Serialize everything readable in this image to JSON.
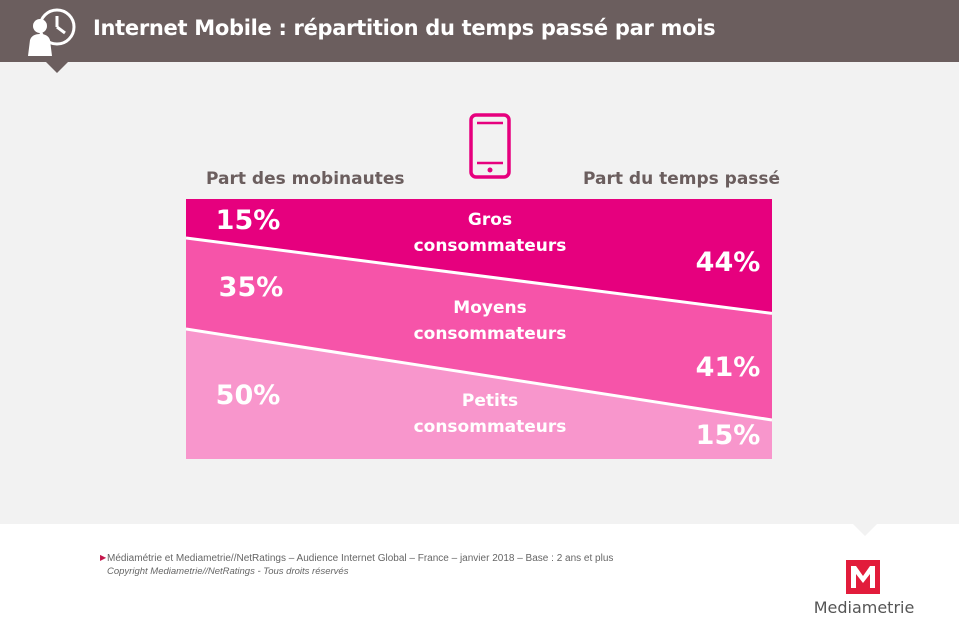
{
  "header": {
    "title": "Internet Mobile : répartition du temps passé par mois",
    "icon": "person-clock-icon"
  },
  "phone_icon": "smartphone-icon",
  "columns": {
    "left": "Part des mobinautes",
    "right": "Part du temps passé"
  },
  "colors": {
    "header_bg": "#6b5e5e",
    "gros": "#e6007e",
    "moyens": "#f654a9",
    "petits": "#f896cc"
  },
  "chart_data": {
    "type": "table",
    "categories": [
      "Gros consommateurs",
      "Moyens consommateurs",
      "Petits consommateurs"
    ],
    "series": [
      {
        "name": "Part des mobinautes",
        "values": [
          15,
          35,
          50
        ],
        "labels": [
          "15%",
          "35%",
          "50%"
        ]
      },
      {
        "name": "Part du temps passé",
        "values": [
          44,
          41,
          15
        ],
        "labels": [
          "44%",
          "41%",
          "15%"
        ]
      }
    ],
    "segment_labels": [
      [
        "Gros",
        "consommateurs"
      ],
      [
        "Moyens",
        "consommateurs"
      ],
      [
        "Petits",
        "consommateurs"
      ]
    ]
  },
  "footer": {
    "source": "Médiamétrie et Mediametrie//NetRatings – Audience Internet Global – France – janvier 2018 – Base : 2 ans et plus",
    "copyright": "Copyright Mediametrie//NetRatings - Tous droits réservés",
    "brand": "Mediametrie"
  }
}
